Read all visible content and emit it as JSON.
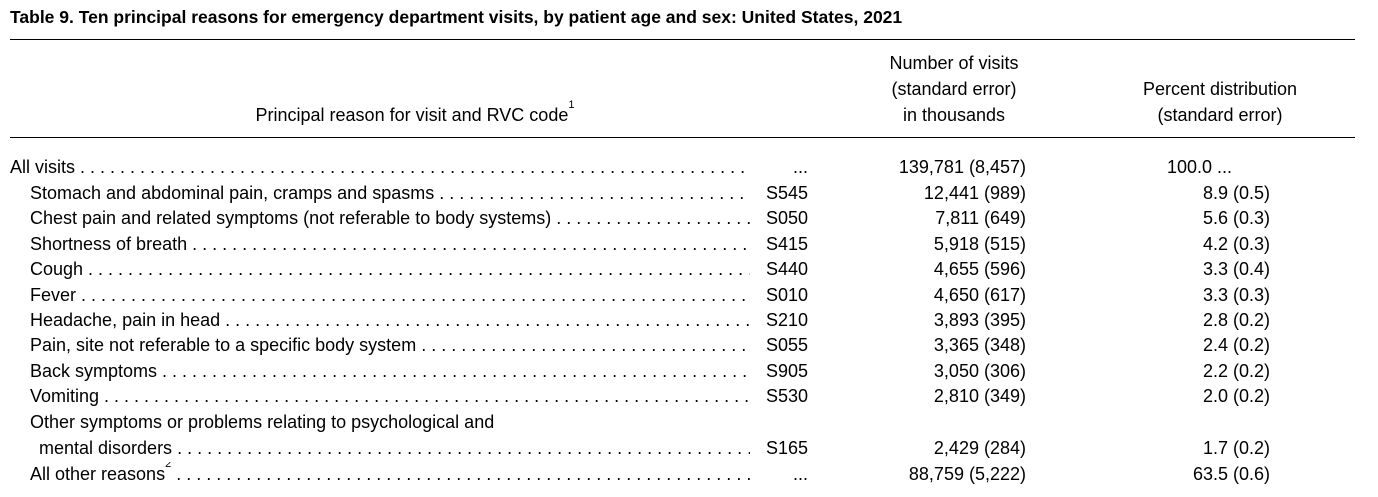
{
  "table": {
    "title": "Table 9. Ten principal reasons for emergency department visits, by patient age and sex: United States, 2021",
    "headers": {
      "reason": "Principal reason for visit and RVC code",
      "reason_sup": "1",
      "visits_line1": "Number of visits",
      "visits_line2": "(standard error)",
      "visits_line3": "in thousands",
      "pct_line1": "Percent distribution",
      "pct_line2": "(standard error)"
    },
    "all_visits": {
      "label": "All visits",
      "code": "...",
      "visits": "139,781 (8,457)",
      "pct": "100.0 ..."
    },
    "rows": [
      {
        "label": "Stomach and abdominal pain, cramps and spasms",
        "code": "S545",
        "visits": "12,441 (989)",
        "pct": "8.9 (0.5)"
      },
      {
        "label": "Chest pain and related symptoms (not referable to body systems)",
        "code": "S050",
        "visits": "7,811 (649)",
        "pct": "5.6 (0.3)"
      },
      {
        "label": "Shortness of breath",
        "code": "S415",
        "visits": "5,918 (515)",
        "pct": "4.2 (0.3)"
      },
      {
        "label": "Cough",
        "code": "S440",
        "visits": "4,655 (596)",
        "pct": "3.3 (0.4)"
      },
      {
        "label": "Fever",
        "code": "S010",
        "visits": "4,650 (617)",
        "pct": "3.3 (0.3)"
      },
      {
        "label": "Headache, pain in head",
        "code": "S210",
        "visits": "3,893 (395)",
        "pct": "2.8 (0.2)"
      },
      {
        "label": "Pain, site not referable to a specific body system",
        "code": "S055",
        "visits": "3,365 (348)",
        "pct": "2.4 (0.2)"
      },
      {
        "label": "Back symptoms",
        "code": "S905",
        "visits": "3,050 (306)",
        "pct": "2.2 (0.2)"
      },
      {
        "label": "Vomiting",
        "code": "S530",
        "visits": "2,810 (349)",
        "pct": "2.0 (0.2)"
      }
    ],
    "other_psych": {
      "label_line1": "Other symptoms or problems relating to psychological and",
      "label_line2": "mental disorders",
      "code": "S165",
      "visits": "2,429 (284)",
      "pct": "1.7 (0.2)"
    },
    "all_other": {
      "label": "All other reasons",
      "label_sup": "2",
      "code": "...",
      "visits": "88,759 (5,222)",
      "pct": "63.5 (0.6)"
    }
  }
}
